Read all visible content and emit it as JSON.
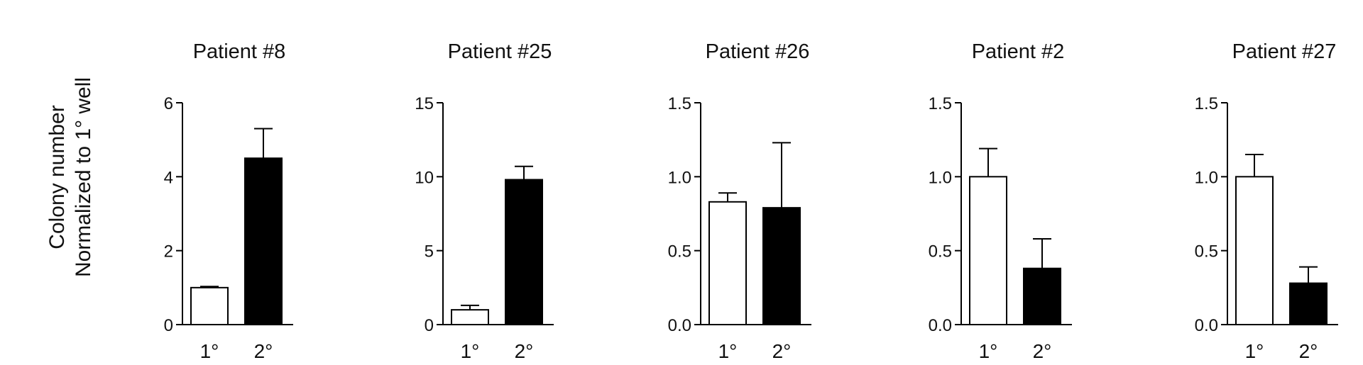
{
  "figure": {
    "ylabel_line1": "Colony number",
    "ylabel_line2": "Normalized to 1° well"
  },
  "chart_data": [
    {
      "type": "bar",
      "title": "Patient #8",
      "categories": [
        "1°",
        "2°"
      ],
      "values": [
        1.0,
        4.5
      ],
      "errors": [
        0.03,
        0.8
      ],
      "bar_fills": [
        "#ffffff",
        "#000000"
      ],
      "ylim": [
        0,
        6
      ],
      "yticks": [
        0,
        2,
        4,
        6
      ],
      "ytick_labels": [
        "0",
        "2",
        "4",
        "6"
      ],
      "grid": false
    },
    {
      "type": "bar",
      "title": "Patient #25",
      "categories": [
        "1°",
        "2°"
      ],
      "values": [
        1.0,
        9.8
      ],
      "errors": [
        0.3,
        0.9
      ],
      "bar_fills": [
        "#ffffff",
        "#000000"
      ],
      "ylim": [
        0,
        15
      ],
      "yticks": [
        0,
        5,
        10,
        15
      ],
      "ytick_labels": [
        "0",
        "5",
        "10",
        "15"
      ],
      "grid": false
    },
    {
      "type": "bar",
      "title": "Patient #26",
      "categories": [
        "1°",
        "2°"
      ],
      "values": [
        0.83,
        0.79
      ],
      "errors": [
        0.06,
        0.44
      ],
      "bar_fills": [
        "#ffffff",
        "#000000"
      ],
      "ylim": [
        0,
        1.5
      ],
      "yticks": [
        0,
        0.5,
        1.0,
        1.5
      ],
      "ytick_labels": [
        "0.0",
        "0.5",
        "1.0",
        "1.5"
      ],
      "grid": false
    },
    {
      "type": "bar",
      "title": "Patient #2",
      "categories": [
        "1°",
        "2°"
      ],
      "values": [
        1.0,
        0.38
      ],
      "errors": [
        0.19,
        0.2
      ],
      "bar_fills": [
        "#ffffff",
        "#000000"
      ],
      "ylim": [
        0,
        1.5
      ],
      "yticks": [
        0,
        0.5,
        1.0,
        1.5
      ],
      "ytick_labels": [
        "0.0",
        "0.5",
        "1.0",
        "1.5"
      ],
      "grid": false
    },
    {
      "type": "bar",
      "title": "Patient #27",
      "categories": [
        "1°",
        "2°"
      ],
      "values": [
        1.0,
        0.28
      ],
      "errors": [
        0.15,
        0.11
      ],
      "bar_fills": [
        "#ffffff",
        "#000000"
      ],
      "ylim": [
        0,
        1.5
      ],
      "yticks": [
        0,
        0.5,
        1.0,
        1.5
      ],
      "ytick_labels": [
        "0.0",
        "0.5",
        "1.0",
        "1.5"
      ],
      "grid": false
    }
  ]
}
